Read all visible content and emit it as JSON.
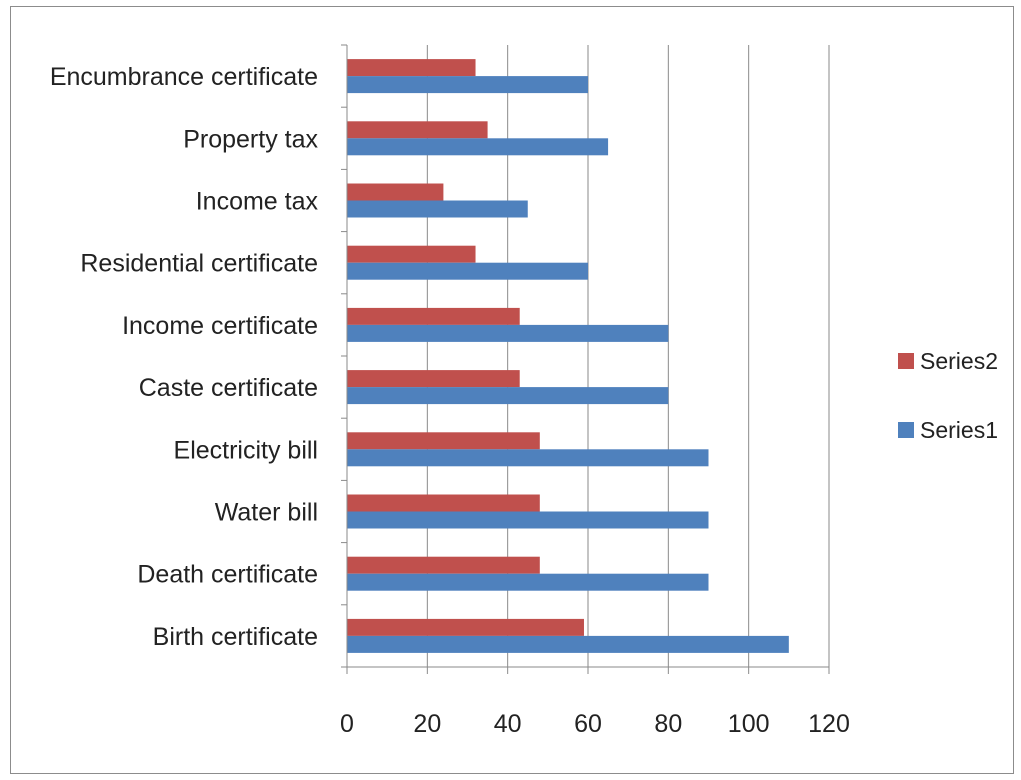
{
  "chart_data": {
    "type": "bar",
    "orientation": "horizontal",
    "categories": [
      "Birth certificate",
      "Death certificate",
      "Water bill",
      "Electricity bill",
      "Caste certificate",
      "Income certificate",
      "Residential certificate",
      "Income tax",
      "Property tax",
      "Encumbrance certificate"
    ],
    "series": [
      {
        "name": "Series1",
        "color": "#4f81bd",
        "values": [
          110,
          90,
          90,
          90,
          80,
          80,
          60,
          45,
          65,
          60
        ]
      },
      {
        "name": "Series2",
        "color": "#c0504d",
        "values": [
          59,
          48,
          48,
          48,
          43,
          43,
          32,
          24,
          35,
          32
        ]
      }
    ],
    "xlim": [
      0,
      120
    ],
    "x_ticks": [
      "0",
      "20",
      "40",
      "60",
      "80",
      "100",
      "120"
    ],
    "grid": "vertical",
    "legend_position": "right",
    "legend_order": [
      "Series2",
      "Series1"
    ],
    "title": "",
    "xlabel": "",
    "ylabel": ""
  }
}
